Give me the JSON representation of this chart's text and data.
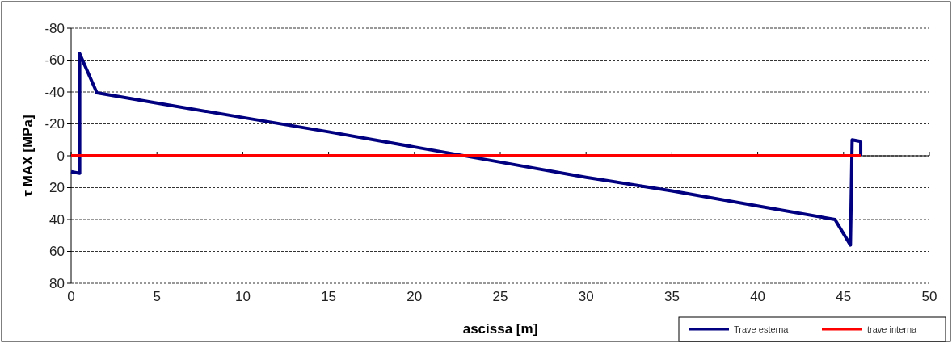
{
  "chart_data": {
    "type": "line",
    "xlabel": "ascissa [m]",
    "ylabel": "τ MAX [MPa]",
    "xlim": [
      0,
      50
    ],
    "xticks": [
      0,
      5,
      10,
      15,
      20,
      25,
      30,
      35,
      40,
      45,
      50
    ],
    "ylim": [
      80,
      -80
    ],
    "yticks": [
      -80,
      -60,
      -40,
      -20,
      0,
      20,
      40,
      60,
      80
    ],
    "grid": "y",
    "legend": "bottom right",
    "line_style": "solid",
    "marker": "none",
    "series": [
      {
        "name": "Trave esterna",
        "color": "#000080",
        "x": [
          0,
          0.5,
          0.5,
          1.5,
          5,
          10,
          15,
          20,
          25,
          30,
          35,
          40,
          44.5,
          45.4,
          45.5,
          46,
          46
        ],
        "values": [
          10,
          11,
          -64,
          -39.5,
          -33,
          -24,
          -15,
          -5.5,
          4,
          13.5,
          22,
          31.5,
          40,
          56,
          -10,
          -9,
          0
        ]
      },
      {
        "name": "trave interna",
        "color": "#ff0000",
        "x": [
          0,
          46
        ],
        "values": [
          0,
          0
        ]
      }
    ]
  }
}
